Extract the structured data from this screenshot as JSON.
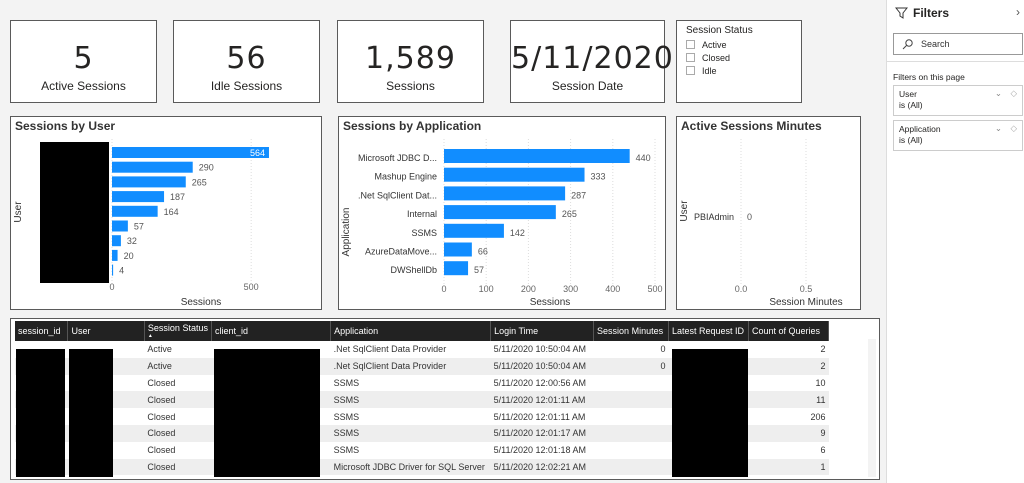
{
  "cards": [
    {
      "value": "5",
      "label": "Active Sessions"
    },
    {
      "value": "56",
      "label": "Idle Sessions"
    },
    {
      "value": "1,589",
      "label": "Sessions"
    },
    {
      "value": "5/11/2020",
      "label": "Session Date"
    }
  ],
  "slicer": {
    "title": "Session Status",
    "items": [
      "Active",
      "Closed",
      "Idle"
    ]
  },
  "chart_data": [
    {
      "type": "bar",
      "orientation": "horizontal",
      "title": "Sessions by User",
      "xlabel": "Sessions",
      "ylabel": "User",
      "values": [
        564,
        290,
        265,
        187,
        164,
        57,
        32,
        20,
        4
      ],
      "xticks": [
        "0",
        "500"
      ],
      "xlim": [
        0,
        600
      ],
      "color": "#118dff"
    },
    {
      "type": "bar",
      "orientation": "horizontal",
      "title": "Sessions by Application",
      "xlabel": "Sessions",
      "ylabel": "Application",
      "categories": [
        "Microsoft JDBC D...",
        "Mashup Engine",
        ".Net SqlClient Dat...",
        "Internal",
        "SSMS",
        "AzureDataMove...",
        "DWShellDb"
      ],
      "values": [
        440,
        333,
        287,
        265,
        142,
        66,
        57
      ],
      "xticks": [
        "0",
        "100",
        "200",
        "300",
        "400",
        "500"
      ],
      "xlim": [
        0,
        500
      ],
      "color": "#118dff"
    },
    {
      "type": "bar",
      "orientation": "horizontal",
      "title": "Active Sessions Minutes",
      "xlabel": "Session Minutes",
      "ylabel": "User",
      "categories": [
        "PBIAdmin"
      ],
      "values": [
        0
      ],
      "xticks": [
        "0.0",
        "0.5",
        "1.0"
      ],
      "xlim": [
        0,
        1
      ],
      "color": "#118dff"
    }
  ],
  "table": {
    "columns": [
      "session_id",
      "User",
      "Session Status",
      "client_id",
      "Application",
      "Login Time",
      "Session Minutes",
      "Latest Request ID",
      "Count of Queries"
    ],
    "sort_icon": "sort-ascending-icon",
    "rows": [
      [
        "",
        "",
        "Active",
        "",
        ".Net SqlClient Data Provider",
        "5/11/2020 10:50:04 AM",
        "0",
        "",
        "2"
      ],
      [
        "",
        "",
        "Active",
        "",
        ".Net SqlClient Data Provider",
        "5/11/2020 10:50:04 AM",
        "0",
        "",
        "2"
      ],
      [
        "",
        "",
        "Closed",
        "",
        "SSMS",
        "5/11/2020 12:00:56 AM",
        "",
        "",
        "10"
      ],
      [
        "",
        "",
        "Closed",
        "",
        "SSMS",
        "5/11/2020 12:01:11 AM",
        "",
        "",
        "11"
      ],
      [
        "",
        "",
        "Closed",
        "",
        "SSMS",
        "5/11/2020 12:01:11 AM",
        "",
        "",
        "206"
      ],
      [
        "",
        "",
        "Closed",
        "",
        "SSMS",
        "5/11/2020 12:01:17 AM",
        "",
        "",
        "9"
      ],
      [
        "",
        "",
        "Closed",
        "",
        "SSMS",
        "5/11/2020 12:01:18 AM",
        "",
        "",
        "6"
      ],
      [
        "",
        "",
        "Closed",
        "",
        "Microsoft JDBC Driver for SQL Server",
        "5/11/2020 12:02:21 AM",
        "",
        "",
        "1"
      ]
    ]
  },
  "filters": {
    "title": "Filters",
    "search_placeholder": "Search",
    "section": "Filters on this page",
    "items": [
      {
        "field": "User",
        "state": "is (All)"
      },
      {
        "field": "Application",
        "state": "is (All)"
      }
    ]
  }
}
